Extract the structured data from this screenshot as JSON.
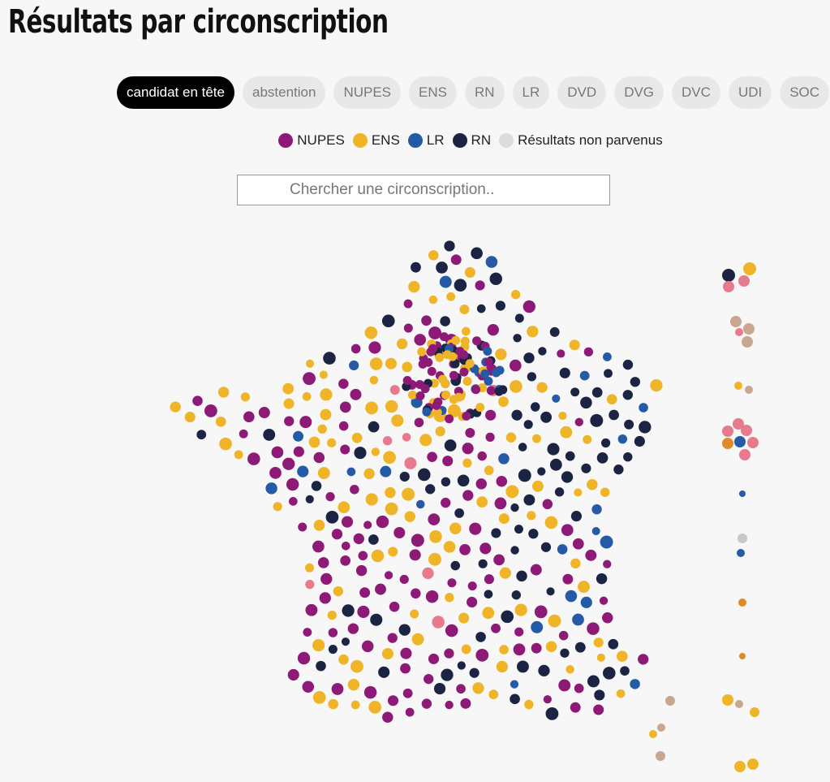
{
  "page": {
    "title": "Résultats par circonscription"
  },
  "tabs": [
    {
      "label": "candidat en tête",
      "active": true
    },
    {
      "label": "abstention"
    },
    {
      "label": "NUPES"
    },
    {
      "label": "ENS"
    },
    {
      "label": "RN"
    },
    {
      "label": "LR"
    },
    {
      "label": "DVD"
    },
    {
      "label": "DVG"
    },
    {
      "label": "DVC"
    },
    {
      "label": "UDI"
    },
    {
      "label": "SOC"
    }
  ],
  "legend": [
    {
      "label": "NUPES",
      "color": "#8e1a78"
    },
    {
      "label": "ENS",
      "color": "#f0b428"
    },
    {
      "label": "LR",
      "color": "#255aa6"
    },
    {
      "label": "RN",
      "color": "#1c2444"
    },
    {
      "label": "Résultats non parvenus",
      "color": "#dcdcdc"
    }
  ],
  "search": {
    "placeholder": "Chercher une circonscription.."
  },
  "colors": {
    "NUPES": "#8e1a78",
    "ENS": "#f0b428",
    "LR": "#255aa6",
    "RN": "#1c2444",
    "DVG": "#e87a8e",
    "DVD": "#c9a690",
    "REG": "#de8c28",
    "NONE": "#c8c8c8"
  }
}
